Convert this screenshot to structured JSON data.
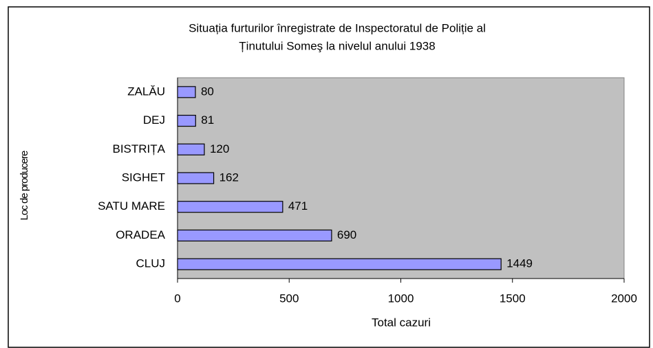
{
  "chart_data": {
    "type": "bar",
    "orientation": "horizontal",
    "title": [
      "Situația furturilor înregistrate de Inspectoratul de Poliție al",
      "Ținutului Someş la nivelul anului 1938"
    ],
    "x_label": "Total cazuri",
    "y_label": "Loc de producere",
    "categories": [
      "ZALĂU",
      "DEJ",
      "BISTRIȚA",
      "SIGHET",
      "SATU MARE",
      "ORADEA",
      "CLUJ"
    ],
    "values": [
      80,
      81,
      120,
      162,
      471,
      690,
      1449
    ],
    "color": "#9999ff",
    "plot_background": "#c0c0c0",
    "xlim": [
      0,
      2000
    ],
    "xticks": [
      0,
      500,
      1000,
      1500,
      2000
    ],
    "grid": false
  }
}
